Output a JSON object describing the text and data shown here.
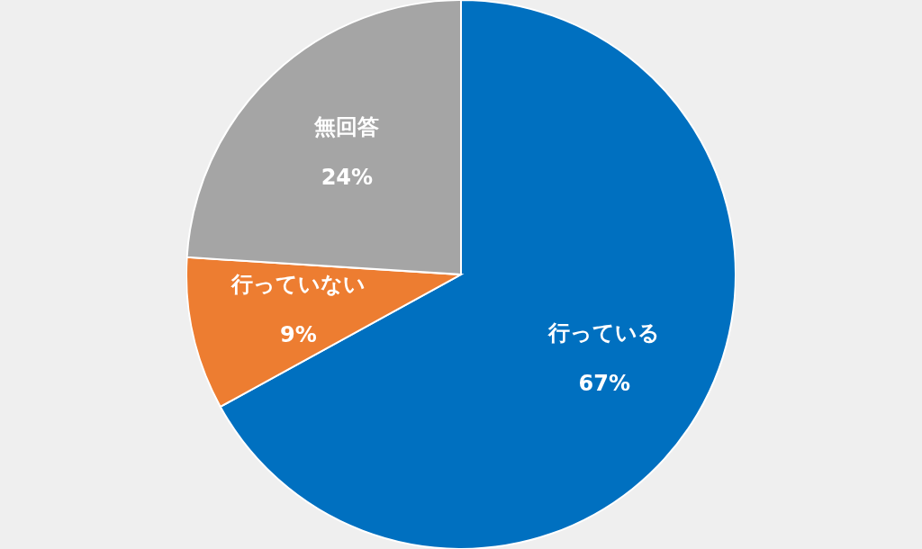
{
  "chart_data": {
    "type": "pie",
    "categories": [
      "行っている",
      "行っていない",
      "無回答"
    ],
    "values": [
      67,
      9,
      24
    ],
    "value_labels": [
      "67%",
      "9%",
      "24%"
    ],
    "colors": [
      "#0070c0",
      "#ed7d31",
      "#a5a5a5"
    ]
  }
}
